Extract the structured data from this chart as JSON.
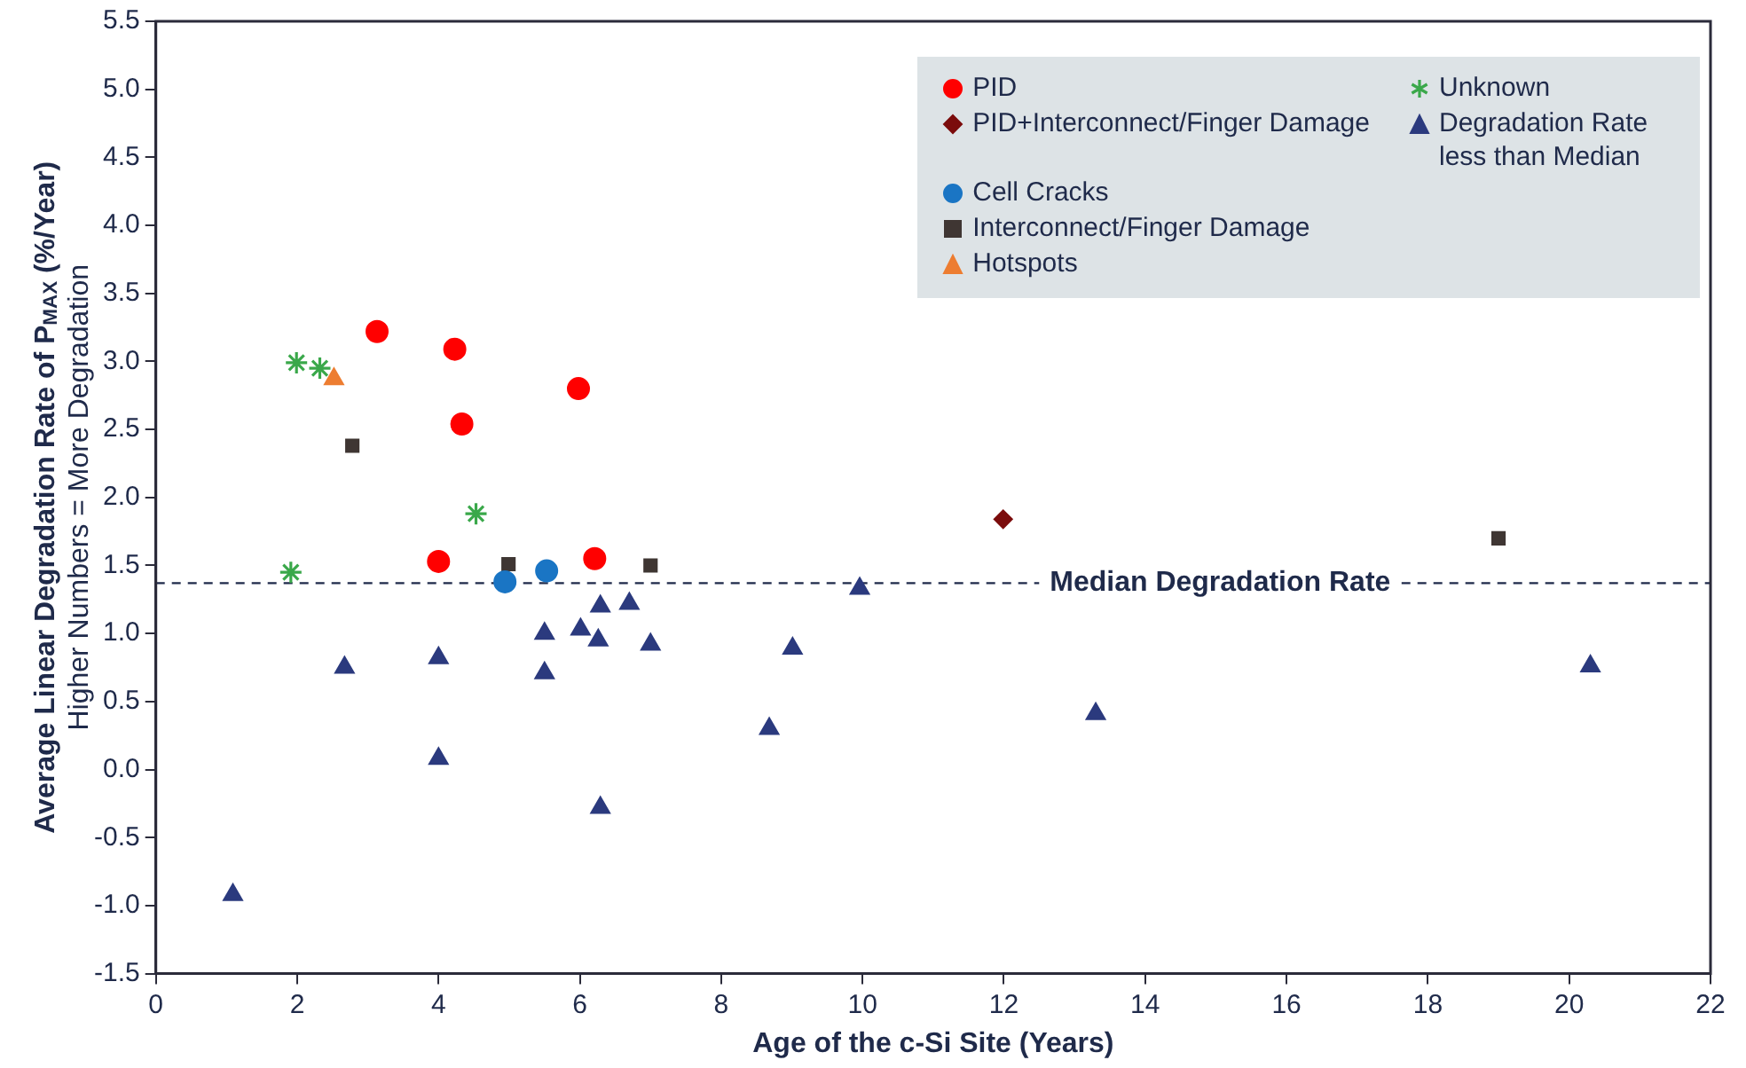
{
  "chart_data": {
    "type": "scatter",
    "xlabel": "Age of the c-Si Site (Years)",
    "ylabel": "Average Linear Degradation Rate of P$_{MAX}$ (%/Year)\nHigher Numbers = More Degradation",
    "xlim": [
      0,
      22
    ],
    "xticks": [
      0,
      2,
      4,
      6,
      8,
      10,
      12,
      14,
      16,
      18,
      20,
      22
    ],
    "ylim": [
      -1.5,
      5.5
    ],
    "yticks": [
      {
        "value": -1.5,
        "label": "-1.5"
      },
      {
        "value": -1,
        "label": "-1.0"
      },
      {
        "value": -0.5,
        "label": "-0.5"
      },
      {
        "value": 0,
        "label": "0.0"
      },
      {
        "value": 0.5,
        "label": "0.5"
      },
      {
        "value": 1,
        "label": "1.0"
      },
      {
        "value": 1.5,
        "label": "1.5"
      },
      {
        "value": 2,
        "label": "2.0"
      },
      {
        "value": 2.5,
        "label": "2.5"
      },
      {
        "value": 3,
        "label": "3.0"
      },
      {
        "value": 3.5,
        "label": "3.5"
      },
      {
        "value": 4,
        "label": "4.0"
      },
      {
        "value": 4.5,
        "label": "4.5"
      },
      {
        "value": 5,
        "label": "5.0"
      },
      {
        "value": 5.5,
        "label": "5.5"
      }
    ],
    "grid": false,
    "legend": "top right",
    "ref_lines": [
      {
        "axis": "y",
        "value": 1.37,
        "label": "Median Degradation Rate",
        "color": "#1f2a4a",
        "line_style": "dashed"
      }
    ],
    "series": [
      {
        "name": "PID",
        "color": "#ff0000",
        "marker": "circle",
        "x": [
          3.13,
          4.23,
          4.33,
          5.98,
          4.0,
          6.21
        ],
        "values": [
          3.22,
          3.09,
          2.54,
          2.8,
          1.53,
          1.55
        ]
      },
      {
        "name": "PID+Interconnect/Finger Damage",
        "color": "#7b0c0c",
        "marker": "diamond",
        "x": [
          11.99
        ],
        "values": [
          1.84
        ]
      },
      {
        "name": "Cell Cracks",
        "color": "#1a75c4",
        "marker": "circle",
        "x": [
          4.94,
          5.53
        ],
        "values": [
          1.38,
          1.46
        ]
      },
      {
        "name": "Interconnect/Finger Damage",
        "color": "#3f3633",
        "marker": "square",
        "x": [
          2.78,
          4.99,
          7.0,
          19.0
        ],
        "values": [
          2.38,
          1.51,
          1.5,
          1.7
        ]
      },
      {
        "name": "Hotspots",
        "color": "#ed7d31",
        "marker": "triangle",
        "x": [
          2.52
        ],
        "values": [
          2.87
        ]
      },
      {
        "name": "Unknown",
        "color": "#3aa84a",
        "marker": "cross",
        "x": [
          1.99,
          2.32,
          4.53,
          1.91
        ],
        "values": [
          2.99,
          2.95,
          1.88,
          1.45
        ]
      },
      {
        "name": "Degradation Rate less than Median",
        "color": "#2b3a7e",
        "marker": "triangle",
        "x": [
          1.09,
          2.67,
          4.0,
          4.0,
          5.5,
          5.5,
          6.01,
          6.29,
          6.26,
          6.7,
          7.0,
          6.29,
          9.01,
          8.68,
          9.96,
          13.3,
          20.3
        ],
        "values": [
          -0.92,
          0.75,
          0.82,
          0.08,
          1.0,
          0.71,
          1.03,
          1.2,
          0.95,
          1.22,
          0.92,
          -0.28,
          0.89,
          0.3,
          1.33,
          0.41,
          0.76
        ]
      }
    ]
  }
}
